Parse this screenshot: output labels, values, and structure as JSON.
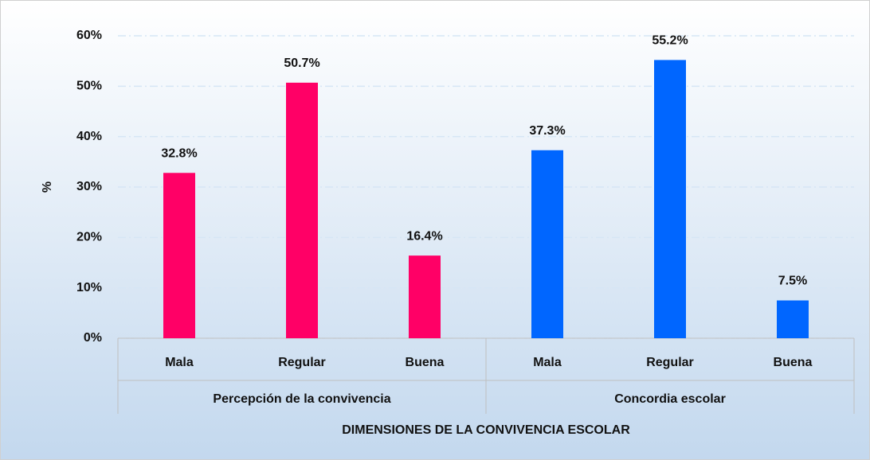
{
  "chart_data": {
    "type": "bar",
    "y_label": "%",
    "x_label": "DIMENSIONES DE LA CONVIVENCIA ESCOLAR",
    "ylim": [
      0,
      60
    ],
    "yticks": [
      {
        "value": 0,
        "label": "0%"
      },
      {
        "value": 10,
        "label": "10%"
      },
      {
        "value": 20,
        "label": "20%"
      },
      {
        "value": 30,
        "label": "30%"
      },
      {
        "value": 40,
        "label": "40%"
      },
      {
        "value": 50,
        "label": "50%"
      },
      {
        "value": 60,
        "label": "60%"
      }
    ],
    "grid": true,
    "groups": [
      {
        "name": "Percepción de la convivencia",
        "color": "#ff0066",
        "categories": [
          "Mala",
          "Regular",
          "Buena"
        ],
        "values": [
          32.8,
          50.7,
          16.4
        ],
        "value_labels": [
          "32.8%",
          "50.7%",
          "16.4%"
        ]
      },
      {
        "name": "Concordia escolar",
        "color": "#0066ff",
        "categories": [
          "Mala",
          "Regular",
          "Buena"
        ],
        "values": [
          37.3,
          55.2,
          7.5
        ],
        "value_labels": [
          "37.3%",
          "55.2%",
          "7.5%"
        ]
      }
    ]
  }
}
